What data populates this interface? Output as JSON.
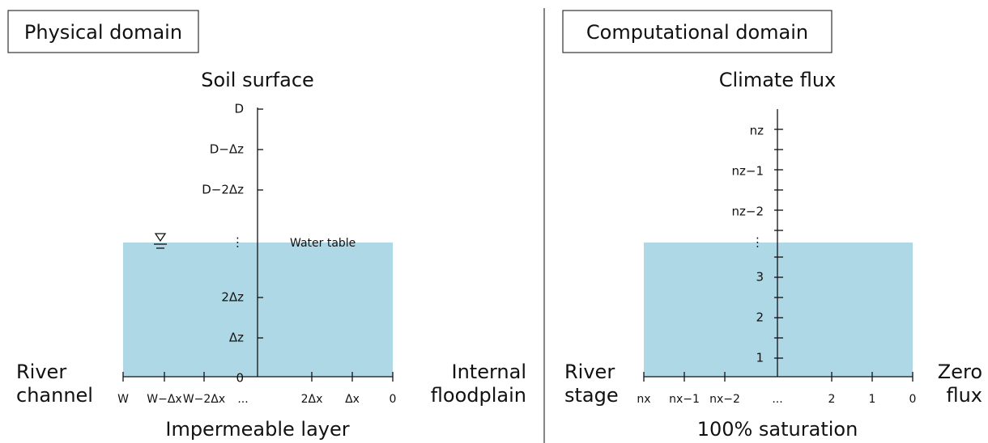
{
  "panels": [
    {
      "title": "Physical domain",
      "top": "Soil surface",
      "bottom": "Impermeable layer",
      "left": [
        "River",
        "channel"
      ],
      "right": [
        "Internal",
        "floodplain"
      ],
      "y_labels": [
        "D",
        "D−Δz",
        "D−2Δz",
        "⋮",
        "2Δz",
        "Δz",
        "0"
      ],
      "x_labels": [
        "W",
        "W−Δx",
        "W−2Δx",
        "...",
        "2Δx",
        "Δx",
        "0"
      ],
      "water_table": "Water table"
    },
    {
      "title": "Computational domain",
      "top": "Climate flux",
      "bottom": "100% saturation",
      "left": [
        "River",
        "stage"
      ],
      "right": [
        "Zero",
        "flux"
      ],
      "y_labels": [
        "nz",
        "nz−1",
        "nz−2",
        "⋮",
        "3",
        "2",
        "1"
      ],
      "x_labels": [
        "nx",
        "nx−1",
        "nx−2",
        "...",
        "2",
        "1",
        "0"
      ]
    }
  ]
}
